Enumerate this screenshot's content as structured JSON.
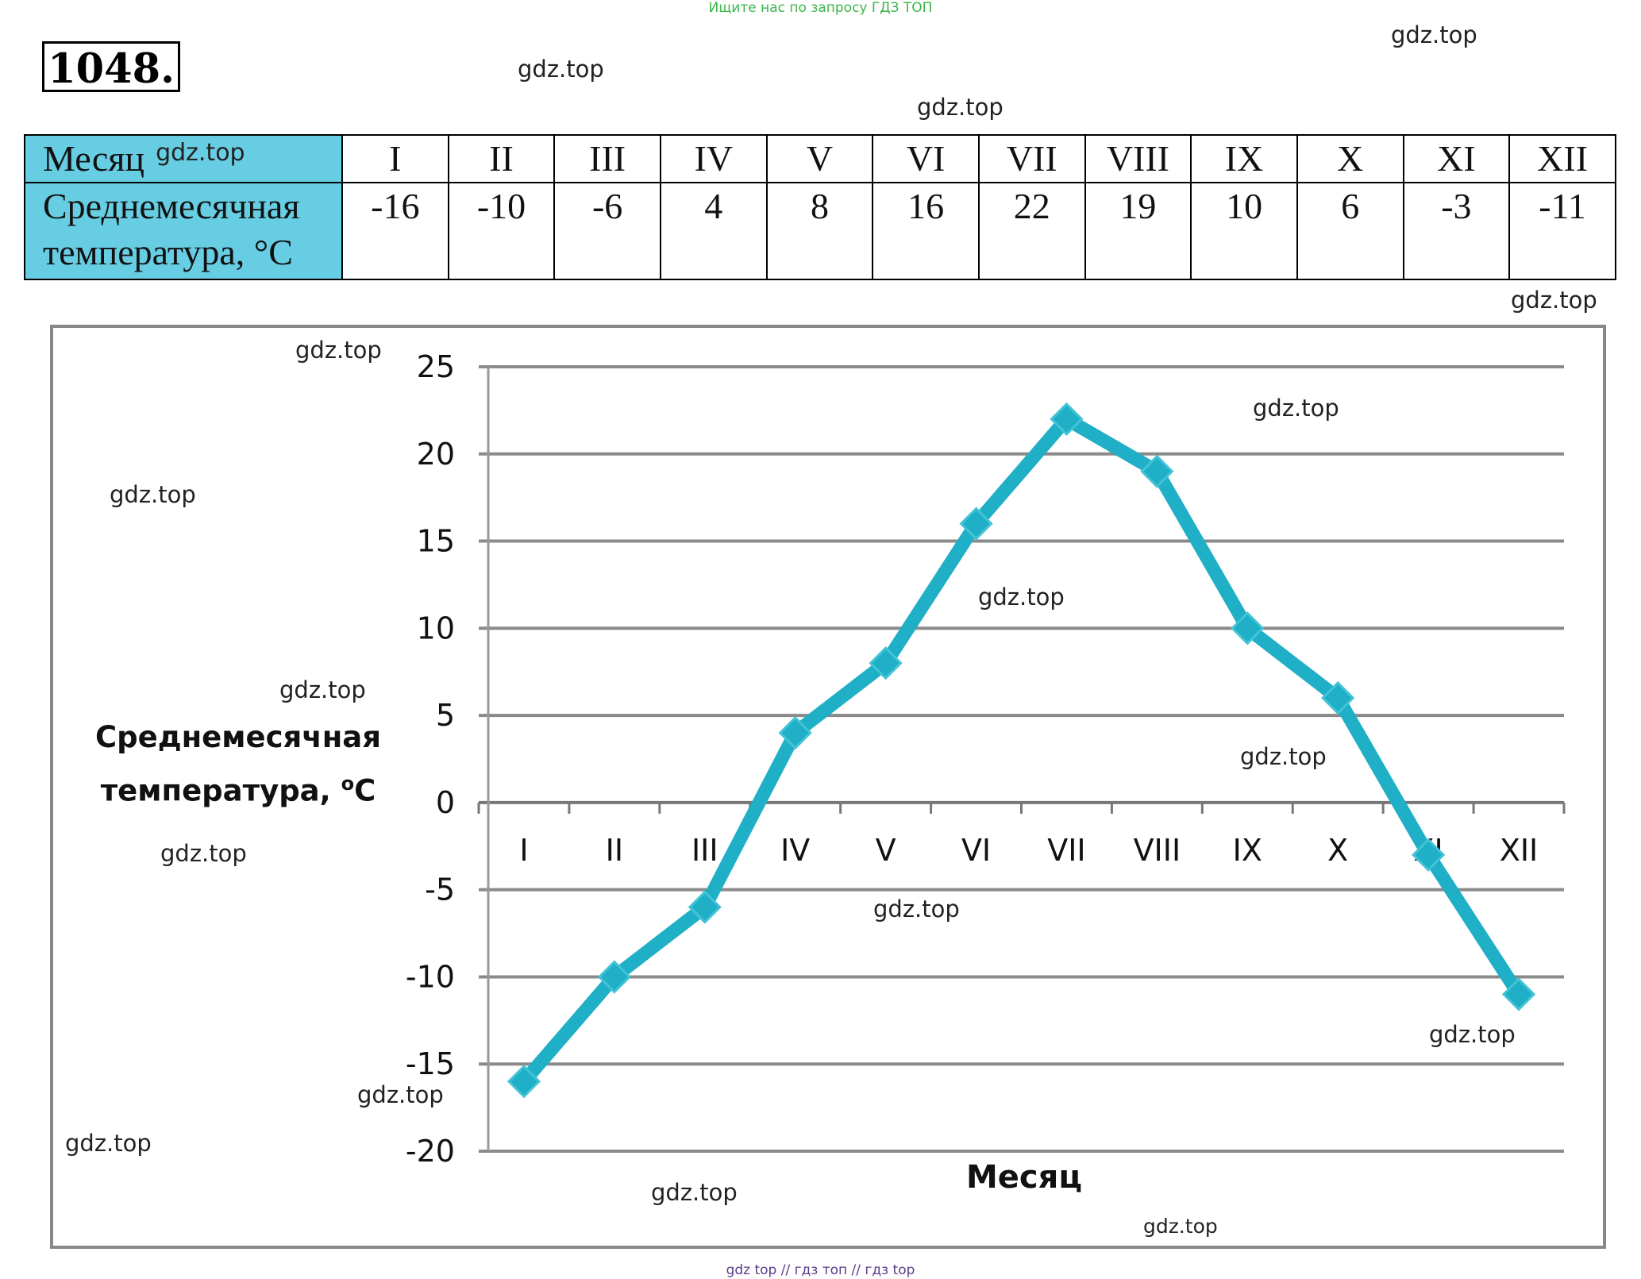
{
  "top_note": "Ищите нас по запросу ГДЗ ТОП",
  "bottom_note": "gdz top  //  гдз топ  //  гдз top",
  "problem_number": "1048.",
  "table": {
    "row1_header": "Месяц",
    "row2_header_line1": "Среднемесячная",
    "row2_header_line2": "температура, °С",
    "months": [
      "I",
      "II",
      "III",
      "IV",
      "V",
      "VI",
      "VII",
      "VIII",
      "IX",
      "X",
      "XI",
      "XII"
    ],
    "temperatures": [
      "-16",
      "-10",
      "-6",
      "4",
      "8",
      "16",
      "22",
      "19",
      "10",
      "6",
      "-3",
      "-11"
    ]
  },
  "watermark_text": "gdz.top",
  "chart_data": {
    "type": "line",
    "categories": [
      "I",
      "II",
      "III",
      "IV",
      "V",
      "VI",
      "VII",
      "VIII",
      "IX",
      "X",
      "XI",
      "XII"
    ],
    "series": [
      {
        "values": [
          -16,
          -10,
          -6,
          4,
          8,
          16,
          22,
          19,
          10,
          6,
          -3,
          -11
        ]
      }
    ],
    "xlabel": "Месяц",
    "ylabel_line1": "Среднемесячная",
    "ylabel_line2": "температура,",
    "ylabel_unit": "C",
    "ylabel_unit_sup": "o",
    "ylim": [
      -20,
      25
    ],
    "yticks": [
      25,
      20,
      15,
      10,
      5,
      0,
      -5,
      -10,
      -15,
      -20
    ],
    "grid": true,
    "color": "#1fafc6"
  }
}
